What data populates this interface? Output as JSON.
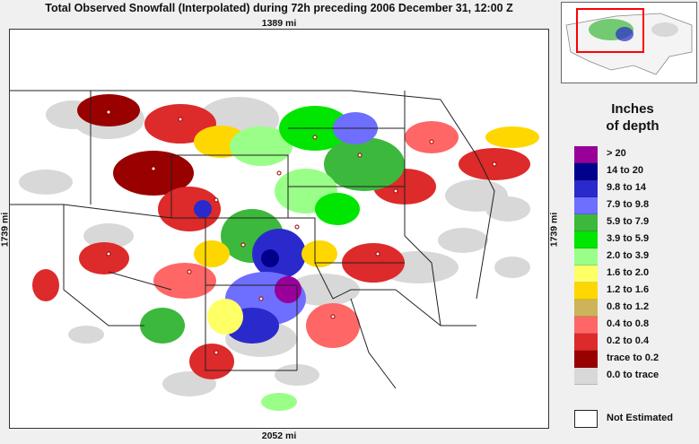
{
  "title": "Total Observed Snowfall (Interpolated) during 72h preceding 2006 December 31, 12:00 Z",
  "map": {
    "distance_top": "1389 mi",
    "distance_bottom": "2052 mi",
    "distance_left": "1739 mi",
    "distance_right": "1739 mi"
  },
  "legend": {
    "title_line1": "Inches",
    "title_line2": "of depth",
    "items": [
      {
        "label": ">   20",
        "color": "#990099"
      },
      {
        "label": "14 to   20",
        "color": "#00008b"
      },
      {
        "label": "9.8 to   14",
        "color": "#2a2acc"
      },
      {
        "label": "7.9 to   9.8",
        "color": "#6e6eff"
      },
      {
        "label": "5.9 to   7.9",
        "color": "#3cb83c"
      },
      {
        "label": "3.9 to   5.9",
        "color": "#00e600"
      },
      {
        "label": "2.0 to   3.9",
        "color": "#99ff88"
      },
      {
        "label": "1.6 to   2.0",
        "color": "#ffff66"
      },
      {
        "label": "1.2 to   1.6",
        "color": "#ffd700"
      },
      {
        "label": "0.8 to   1.2",
        "color": "#cdb45a"
      },
      {
        "label": "0.4 to   0.8",
        "color": "#ff6666"
      },
      {
        "label": "0.2 to   0.4",
        "color": "#dd2a2a"
      },
      {
        "label": "trace to   0.2",
        "color": "#990000"
      },
      {
        "label": "0.0 to trace",
        "color": "#d8d8d8"
      }
    ],
    "not_estimated": {
      "label": "Not Estimated",
      "color": "#ffffff"
    }
  },
  "inset": {
    "highlight_color": "#ff0000"
  }
}
